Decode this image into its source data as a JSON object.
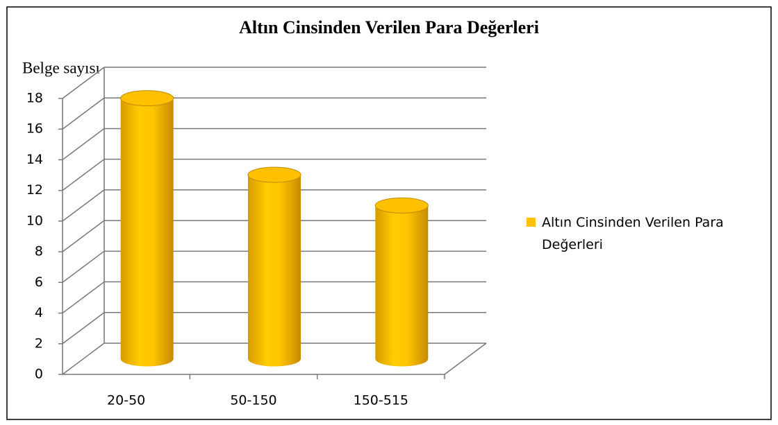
{
  "chart_data": {
    "type": "bar3d",
    "title": "Altın Cinsinden Verilen Para Değerleri",
    "y_label": "Belge sayısı",
    "categories": [
      "20-50",
      "50-150",
      "150-515"
    ],
    "series": [
      {
        "name": "Altın Cinsinden Verilen Para Değerleri",
        "color": "#ffc000",
        "values": [
          17,
          12,
          10
        ]
      }
    ],
    "ylim": [
      0,
      18
    ],
    "yticks": [
      0,
      2,
      4,
      6,
      8,
      10,
      12,
      14,
      16,
      18
    ],
    "grid": true,
    "legend": "right"
  }
}
